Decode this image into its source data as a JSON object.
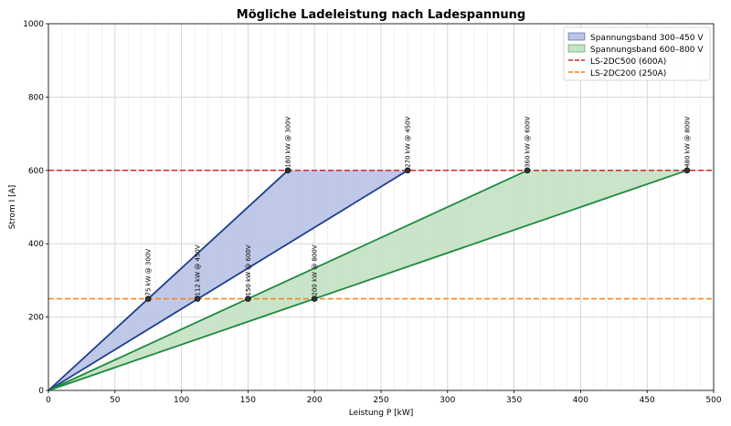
{
  "chart_data": {
    "type": "line",
    "title": "Mögliche Ladeleistung nach Ladespannung",
    "xlabel": "Leistung P [kW]",
    "ylabel": "Strom I [A]",
    "xlim": [
      0,
      500
    ],
    "ylim": [
      0,
      1000
    ],
    "x_ticks": [
      "0",
      "50",
      "100",
      "150",
      "200",
      "250",
      "300",
      "350",
      "400",
      "450",
      "500"
    ],
    "y_ticks": [
      "0",
      "200",
      "400",
      "600",
      "800",
      "1000"
    ],
    "grid": true,
    "minor_grid_x_step": 10,
    "legend_position": "top-right",
    "bands": [
      {
        "name": "Spannungsband 300–450 V",
        "fill_color": "#bcc5e6",
        "line_color": "#1f3f8a",
        "polygon": [
          [
            0,
            0
          ],
          [
            180,
            600
          ],
          [
            270,
            600
          ]
        ]
      },
      {
        "name": "Spannungsband 600–800 V",
        "fill_color": "#c6e3c6",
        "line_color": "#1f8a3f",
        "polygon": [
          [
            0,
            0
          ],
          [
            360,
            600
          ],
          [
            480,
            600
          ]
        ]
      }
    ],
    "limits": [
      {
        "name": "LS-2DC500 (600A)",
        "value": 600,
        "color": "#d62728"
      },
      {
        "name": "LS-2DC200 (250A)",
        "value": 250,
        "color": "#ff7f0e"
      }
    ],
    "points": [
      {
        "x": 75,
        "y": 250,
        "label": "75 kW @ 300V"
      },
      {
        "x": 112,
        "y": 250,
        "label": "112 kW @ 450V"
      },
      {
        "x": 150,
        "y": 250,
        "label": "150 kW @ 600V"
      },
      {
        "x": 200,
        "y": 250,
        "label": "200 kW @ 800V"
      },
      {
        "x": 180,
        "y": 600,
        "label": "180 kW @ 300V"
      },
      {
        "x": 270,
        "y": 600,
        "label": "270 kW @ 450V"
      },
      {
        "x": 360,
        "y": 600,
        "label": "360 kW @ 600V"
      },
      {
        "x": 480,
        "y": 600,
        "label": "480 kW @ 800V"
      }
    ]
  }
}
